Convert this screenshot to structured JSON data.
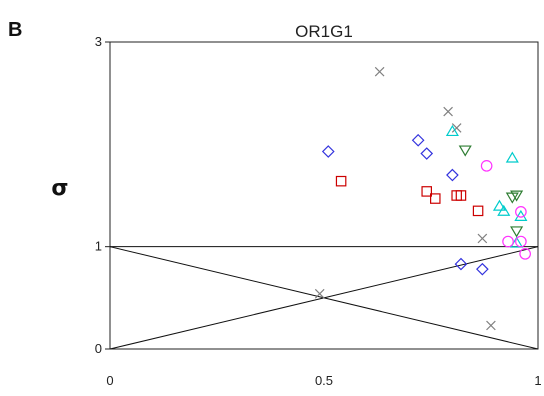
{
  "chart_data": {
    "type": "scatter",
    "panel_label": "B",
    "title": "OR1G1",
    "xlabel": "",
    "ylabel": "σ",
    "xlim": [
      0,
      1
    ],
    "ylim": [
      0,
      3
    ],
    "x_ticks": [
      "0",
      "0.5",
      "1"
    ],
    "y_ticks": [
      "0",
      "1",
      "3"
    ],
    "grid": false,
    "legend": "none",
    "reference_lines": [
      {
        "x": [
          0,
          1
        ],
        "y": [
          1,
          1
        ]
      },
      {
        "x": [
          0,
          1
        ],
        "y": [
          1,
          0
        ]
      },
      {
        "x": [
          0,
          1
        ],
        "y": [
          0,
          1
        ]
      }
    ],
    "series": [
      {
        "marker": "x",
        "color": "#808080",
        "points": [
          [
            0.63,
            2.71
          ],
          [
            0.79,
            2.32
          ],
          [
            0.81,
            2.16
          ],
          [
            0.87,
            1.08
          ],
          [
            0.49,
            0.54
          ],
          [
            0.89,
            0.23
          ]
        ]
      },
      {
        "marker": "diamond",
        "color": "#3333dd",
        "points": [
          [
            0.51,
            1.93
          ],
          [
            0.72,
            2.04
          ],
          [
            0.74,
            1.91
          ],
          [
            0.8,
            1.7
          ],
          [
            0.82,
            0.83
          ],
          [
            0.87,
            0.78
          ]
        ]
      },
      {
        "marker": "square",
        "color": "#cc0000",
        "points": [
          [
            0.54,
            1.64
          ],
          [
            0.74,
            1.54
          ],
          [
            0.76,
            1.47
          ],
          [
            0.81,
            1.5
          ],
          [
            0.82,
            1.5
          ],
          [
            0.86,
            1.35
          ]
        ]
      },
      {
        "marker": "triangle-down",
        "color": "#2e7d32",
        "points": [
          [
            0.83,
            1.94
          ],
          [
            0.94,
            1.48
          ],
          [
            0.95,
            1.5
          ],
          [
            0.95,
            1.15
          ]
        ]
      },
      {
        "marker": "triangle-up",
        "color": "#00cccc",
        "points": [
          [
            0.8,
            2.13
          ],
          [
            0.94,
            1.87
          ],
          [
            0.91,
            1.4
          ],
          [
            0.92,
            1.35
          ],
          [
            0.96,
            1.3
          ],
          [
            0.95,
            1.04
          ]
        ]
      },
      {
        "marker": "circle",
        "color": "#ff33ff",
        "points": [
          [
            0.88,
            1.79
          ],
          [
            0.93,
            1.05
          ],
          [
            0.96,
            1.34
          ],
          [
            0.96,
            1.05
          ],
          [
            0.97,
            0.93
          ]
        ]
      }
    ]
  }
}
